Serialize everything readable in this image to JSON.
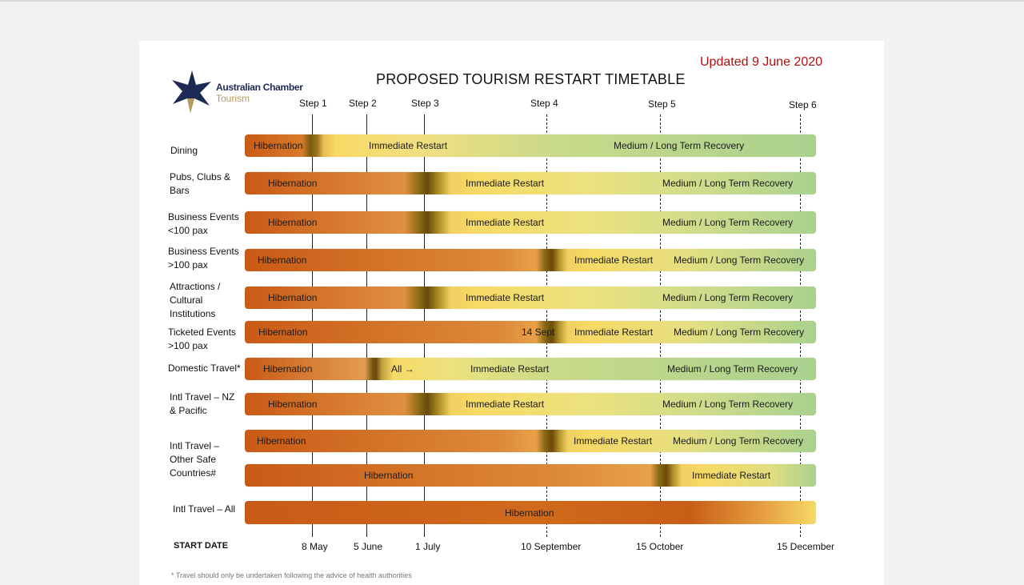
{
  "updated": "Updated 9 June 2020",
  "title": "PROPOSED TOURISM RESTART TIMETABLE",
  "logo": {
    "line1": "Australian Chamber",
    "line2": "Tourism",
    "icon": "star-icon"
  },
  "steps": [
    "Step 1",
    "Step 2",
    "Step 3",
    "Step 4",
    "Step 5",
    "Step 6"
  ],
  "start_label": "START DATE",
  "dates": [
    "8 May",
    "5 June",
    "1 July",
    "10 September",
    "15 October",
    "15 December"
  ],
  "rows": [
    {
      "label": "Dining",
      "segments": [
        "Hibernation",
        "Immediate Restart",
        "Medium / Long Term Recovery"
      ]
    },
    {
      "label": "Pubs, Clubs & Bars",
      "segments": [
        "Hibernation",
        "Immediate Restart",
        "Medium / Long Term Recovery"
      ]
    },
    {
      "label": "Business Events <100 pax",
      "segments": [
        "Hibernation",
        "Immediate Restart",
        "Medium / Long Term Recovery"
      ]
    },
    {
      "label": "Business Events >100 pax",
      "segments": [
        "Hibernation",
        "Immediate Restart",
        "Medium / Long Term Recovery"
      ]
    },
    {
      "label": "Attractions / Cultural Institutions",
      "segments": [
        "Hibernation",
        "Immediate Restart",
        "Medium / Long Term Recovery"
      ]
    },
    {
      "label": "Ticketed Events >100 pax",
      "segments": [
        "Hibernation",
        "14 Sept",
        "Immediate Restart",
        "Medium / Long Term Recovery"
      ]
    },
    {
      "label": "Domestic Travel*",
      "segments": [
        "Hibernation",
        "All →",
        "Immediate Restart",
        "Medium / Long Term Recovery"
      ]
    },
    {
      "label": "Intl Travel – NZ & Pacific",
      "segments": [
        "Hibernation",
        "Immediate Restart",
        "Medium / Long Term Recovery"
      ]
    },
    {
      "label": "Intl Travel – Other Safe Countries#",
      "segments": [
        "Hibernation",
        "Immediate Restart",
        "Medium / Long Term Recovery"
      ]
    },
    {
      "label": "",
      "segments": [
        "Hibernation",
        "Immediate Restart"
      ]
    },
    {
      "label": "Intl Travel – All",
      "segments": [
        "Hibernation"
      ]
    }
  ],
  "colors": {
    "hibernation": "#c95a16",
    "restart": "#f7d965",
    "recovery": "#a9d18e",
    "transition": "#7a5a10",
    "updated_text": "#b30f0f"
  },
  "footer": "* Travel should only be undertaken following the advice of health authorities"
}
